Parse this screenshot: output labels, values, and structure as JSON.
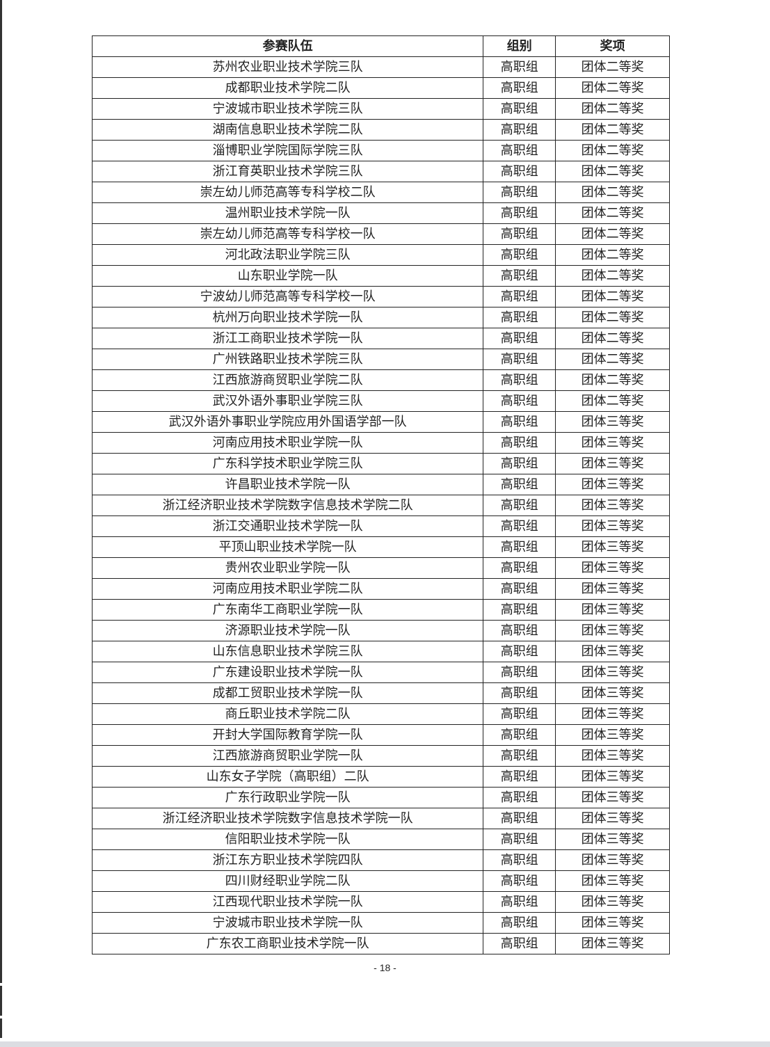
{
  "table": {
    "headers": [
      "参赛队伍",
      "组别",
      "奖项"
    ],
    "rows": [
      [
        "苏州农业职业技术学院三队",
        "高职组",
        "团体二等奖"
      ],
      [
        "成都职业技术学院二队",
        "高职组",
        "团体二等奖"
      ],
      [
        "宁波城市职业技术学院三队",
        "高职组",
        "团体二等奖"
      ],
      [
        "湖南信息职业技术学院二队",
        "高职组",
        "团体二等奖"
      ],
      [
        "淄博职业学院国际学院三队",
        "高职组",
        "团体二等奖"
      ],
      [
        "浙江育英职业技术学院三队",
        "高职组",
        "团体二等奖"
      ],
      [
        "崇左幼儿师范高等专科学校二队",
        "高职组",
        "团体二等奖"
      ],
      [
        "温州职业技术学院一队",
        "高职组",
        "团体二等奖"
      ],
      [
        "崇左幼儿师范高等专科学校一队",
        "高职组",
        "团体二等奖"
      ],
      [
        "河北政法职业学院三队",
        "高职组",
        "团体二等奖"
      ],
      [
        "山东职业学院一队",
        "高职组",
        "团体二等奖"
      ],
      [
        "宁波幼儿师范高等专科学校一队",
        "高职组",
        "团体二等奖"
      ],
      [
        "杭州万向职业技术学院一队",
        "高职组",
        "团体二等奖"
      ],
      [
        "浙江工商职业技术学院一队",
        "高职组",
        "团体二等奖"
      ],
      [
        "广州铁路职业技术学院三队",
        "高职组",
        "团体二等奖"
      ],
      [
        "江西旅游商贸职业学院二队",
        "高职组",
        "团体二等奖"
      ],
      [
        "武汉外语外事职业学院三队",
        "高职组",
        "团体二等奖"
      ],
      [
        "武汉外语外事职业学院应用外国语学部一队",
        "高职组",
        "团体三等奖"
      ],
      [
        "河南应用技术职业学院一队",
        "高职组",
        "团体三等奖"
      ],
      [
        "广东科学技术职业学院三队",
        "高职组",
        "团体三等奖"
      ],
      [
        "许昌职业技术学院一队",
        "高职组",
        "团体三等奖"
      ],
      [
        "浙江经济职业技术学院数字信息技术学院二队",
        "高职组",
        "团体三等奖"
      ],
      [
        "浙江交通职业技术学院一队",
        "高职组",
        "团体三等奖"
      ],
      [
        "平顶山职业技术学院一队",
        "高职组",
        "团体三等奖"
      ],
      [
        "贵州农业职业学院一队",
        "高职组",
        "团体三等奖"
      ],
      [
        "河南应用技术职业学院二队",
        "高职组",
        "团体三等奖"
      ],
      [
        "广东南华工商职业学院一队",
        "高职组",
        "团体三等奖"
      ],
      [
        "济源职业技术学院一队",
        "高职组",
        "团体三等奖"
      ],
      [
        "山东信息职业技术学院三队",
        "高职组",
        "团体三等奖"
      ],
      [
        "广东建设职业技术学院一队",
        "高职组",
        "团体三等奖"
      ],
      [
        "成都工贸职业技术学院一队",
        "高职组",
        "团体三等奖"
      ],
      [
        "商丘职业技术学院二队",
        "高职组",
        "团体三等奖"
      ],
      [
        "开封大学国际教育学院一队",
        "高职组",
        "团体三等奖"
      ],
      [
        "江西旅游商贸职业学院一队",
        "高职组",
        "团体三等奖"
      ],
      [
        "山东女子学院（高职组）二队",
        "高职组",
        "团体三等奖"
      ],
      [
        "广东行政职业学院一队",
        "高职组",
        "团体三等奖"
      ],
      [
        "浙江经济职业技术学院数字信息技术学院一队",
        "高职组",
        "团体三等奖"
      ],
      [
        "信阳职业技术学院一队",
        "高职组",
        "团体三等奖"
      ],
      [
        "浙江东方职业技术学院四队",
        "高职组",
        "团体三等奖"
      ],
      [
        "四川财经职业学院二队",
        "高职组",
        "团体三等奖"
      ],
      [
        "江西现代职业技术学院一队",
        "高职组",
        "团体三等奖"
      ],
      [
        "宁波城市职业技术学院一队",
        "高职组",
        "团体三等奖"
      ],
      [
        "广东农工商职业技术学院一队",
        "高职组",
        "团体三等奖"
      ]
    ]
  },
  "page_number": "- 18 -"
}
